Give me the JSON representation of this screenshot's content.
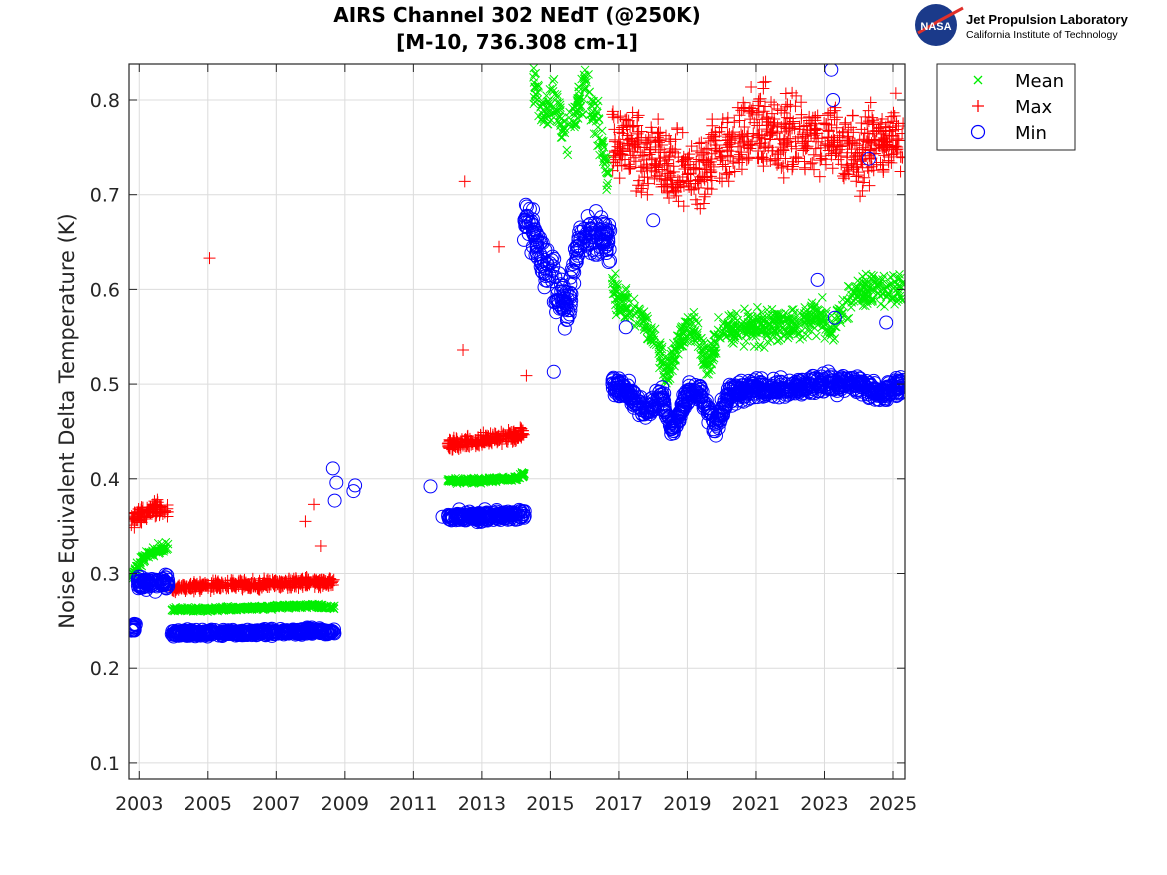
{
  "logo": {
    "org_title": "Jet Propulsion Laboratory",
    "org_subtitle": "California Institute of Technology",
    "badge_text": "NASA"
  },
  "chart_data": {
    "type": "scatter",
    "title": "AIRS Channel 302 NEdT (@250K)",
    "subtitle": "[M-10, 736.308 cm-1]",
    "xlabel": "",
    "ylabel": "Noise Equivalent Delta Temperature (K)",
    "xlim": [
      2002.7,
      2025.35
    ],
    "ylim": [
      0.083,
      0.838
    ],
    "grid": true,
    "legend_position": "outside-top-right",
    "x_ticks": [
      "2003",
      "2005",
      "2007",
      "2009",
      "2011",
      "2013",
      "2015",
      "2017",
      "2019",
      "2021",
      "2023",
      "2025"
    ],
    "y_ticks": [
      "0.1",
      "0.2",
      "0.3",
      "0.4",
      "0.5",
      "0.6",
      "0.7",
      "0.8"
    ],
    "colors": {
      "Mean": "#00ee00",
      "Max": "#ff0000",
      "Min": "#0000ff"
    },
    "series": [
      {
        "name": "Mean",
        "marker": "x",
        "segments": [
          {
            "x": [
              2002.75,
              2003.1,
              2003.5,
              2003.85
            ],
            "y": [
              0.295,
              0.315,
              0.325,
              0.33
            ],
            "spread": 0.008
          },
          {
            "x": [
              2003.95,
              2005.0,
              2006.5,
              2008.0,
              2008.7
            ],
            "y": [
              0.262,
              0.262,
              0.264,
              0.266,
              0.264
            ],
            "spread": 0.003
          },
          {
            "x": [
              2012.0,
              2013.0,
              2014.0,
              2014.25
            ],
            "y": [
              0.398,
              0.398,
              0.401,
              0.405
            ],
            "spread": 0.004
          },
          {
            "x": [
              2014.5,
              2014.8,
              2015.1,
              2015.5,
              2016.0,
              2016.4,
              2016.7
            ],
            "y": [
              0.82,
              0.78,
              0.8,
              0.76,
              0.82,
              0.77,
              0.72
            ],
            "spread": 0.035
          },
          {
            "x": [
              2016.8,
              2017.2,
              2017.6,
              2018.0,
              2018.4,
              2018.8,
              2019.2,
              2019.6,
              2020.0,
              2020.4,
              2021.0,
              2022.0,
              2022.8,
              2023.2,
              2023.6,
              2024.0,
              2024.5,
              2025.3
            ],
            "y": [
              0.6,
              0.58,
              0.57,
              0.55,
              0.51,
              0.55,
              0.56,
              0.52,
              0.56,
              0.56,
              0.56,
              0.56,
              0.575,
              0.56,
              0.58,
              0.6,
              0.6,
              0.6
            ],
            "spread": 0.025
          }
        ]
      },
      {
        "name": "Max",
        "marker": "+",
        "segments": [
          {
            "x": [
              2002.75,
              2003.2,
              2003.6,
              2003.85
            ],
            "y": [
              0.355,
              0.365,
              0.37,
              0.365
            ],
            "spread": 0.012
          },
          {
            "x": [
              2003.95,
              2005.0,
              2006.5,
              2008.0,
              2008.7
            ],
            "y": [
              0.285,
              0.287,
              0.289,
              0.291,
              0.29
            ],
            "spread": 0.007
          },
          {
            "x": [
              2012.0,
              2013.0,
              2014.0,
              2014.25
            ],
            "y": [
              0.435,
              0.44,
              0.445,
              0.45
            ],
            "spread": 0.01
          },
          {
            "x": [
              2016.8,
              2018.0,
              2019.0,
              2020.0,
              2021.0,
              2022.0,
              2023.0,
              2024.0,
              2025.3
            ],
            "y": [
              0.76,
              0.74,
              0.72,
              0.74,
              0.77,
              0.76,
              0.76,
              0.75,
              0.76
            ],
            "spread": 0.06
          }
        ],
        "outliers": {
          "x": [
            2005.05,
            2012.5,
            2012.45,
            2013.5,
            2007.85,
            2008.1,
            2008.3,
            2014.3
          ],
          "y": [
            0.633,
            0.714,
            0.536,
            0.645,
            0.355,
            0.373,
            0.329,
            0.509
          ]
        }
      },
      {
        "name": "Min",
        "marker": "o",
        "segments": [
          {
            "x": [
              2002.75,
              2002.9
            ],
            "y": [
              0.24,
              0.245
            ],
            "spread": 0.006
          },
          {
            "x": [
              2002.95,
              2003.4,
              2003.85
            ],
            "y": [
              0.29,
              0.29,
              0.29
            ],
            "spread": 0.01
          },
          {
            "x": [
              2003.95,
              2005.0,
              2006.5,
              2008.0,
              2008.7
            ],
            "y": [
              0.237,
              0.237,
              0.238,
              0.239,
              0.238
            ],
            "spread": 0.005
          },
          {
            "x": [
              2012.0,
              2013.0,
              2014.0,
              2014.25
            ],
            "y": [
              0.36,
              0.36,
              0.362,
              0.363
            ],
            "spread": 0.008
          },
          {
            "x": [
              2014.2,
              2014.5,
              2014.8,
              2015.2,
              2015.5,
              2015.8,
              2016.2,
              2016.6,
              2016.75
            ],
            "y": [
              0.68,
              0.66,
              0.63,
              0.6,
              0.58,
              0.65,
              0.66,
              0.66,
              0.65
            ],
            "spread": 0.035
          },
          {
            "x": [
              2016.8,
              2017.3,
              2017.8,
              2018.2,
              2018.6,
              2019.0,
              2019.4,
              2019.8,
              2020.2,
              2021.0,
              2022.0,
              2023.0,
              2024.0,
              2024.7,
              2025.3
            ],
            "y": [
              0.5,
              0.49,
              0.47,
              0.49,
              0.45,
              0.49,
              0.49,
              0.455,
              0.49,
              0.495,
              0.495,
              0.5,
              0.5,
              0.49,
              0.5
            ],
            "spread": 0.015
          }
        ],
        "outliers": {
          "x": [
            2008.65,
            2008.75,
            2008.7,
            2009.3,
            2009.25,
            2011.5,
            2011.85,
            2015.1,
            2017.2,
            2018.0,
            2022.8,
            2023.2,
            2023.25,
            2023.3,
            2024.3,
            2024.8
          ],
          "y": [
            0.411,
            0.396,
            0.377,
            0.393,
            0.387,
            0.392,
            0.36,
            0.513,
            0.56,
            0.673,
            0.61,
            0.832,
            0.8,
            0.57,
            0.738,
            0.565
          ]
        }
      }
    ]
  }
}
